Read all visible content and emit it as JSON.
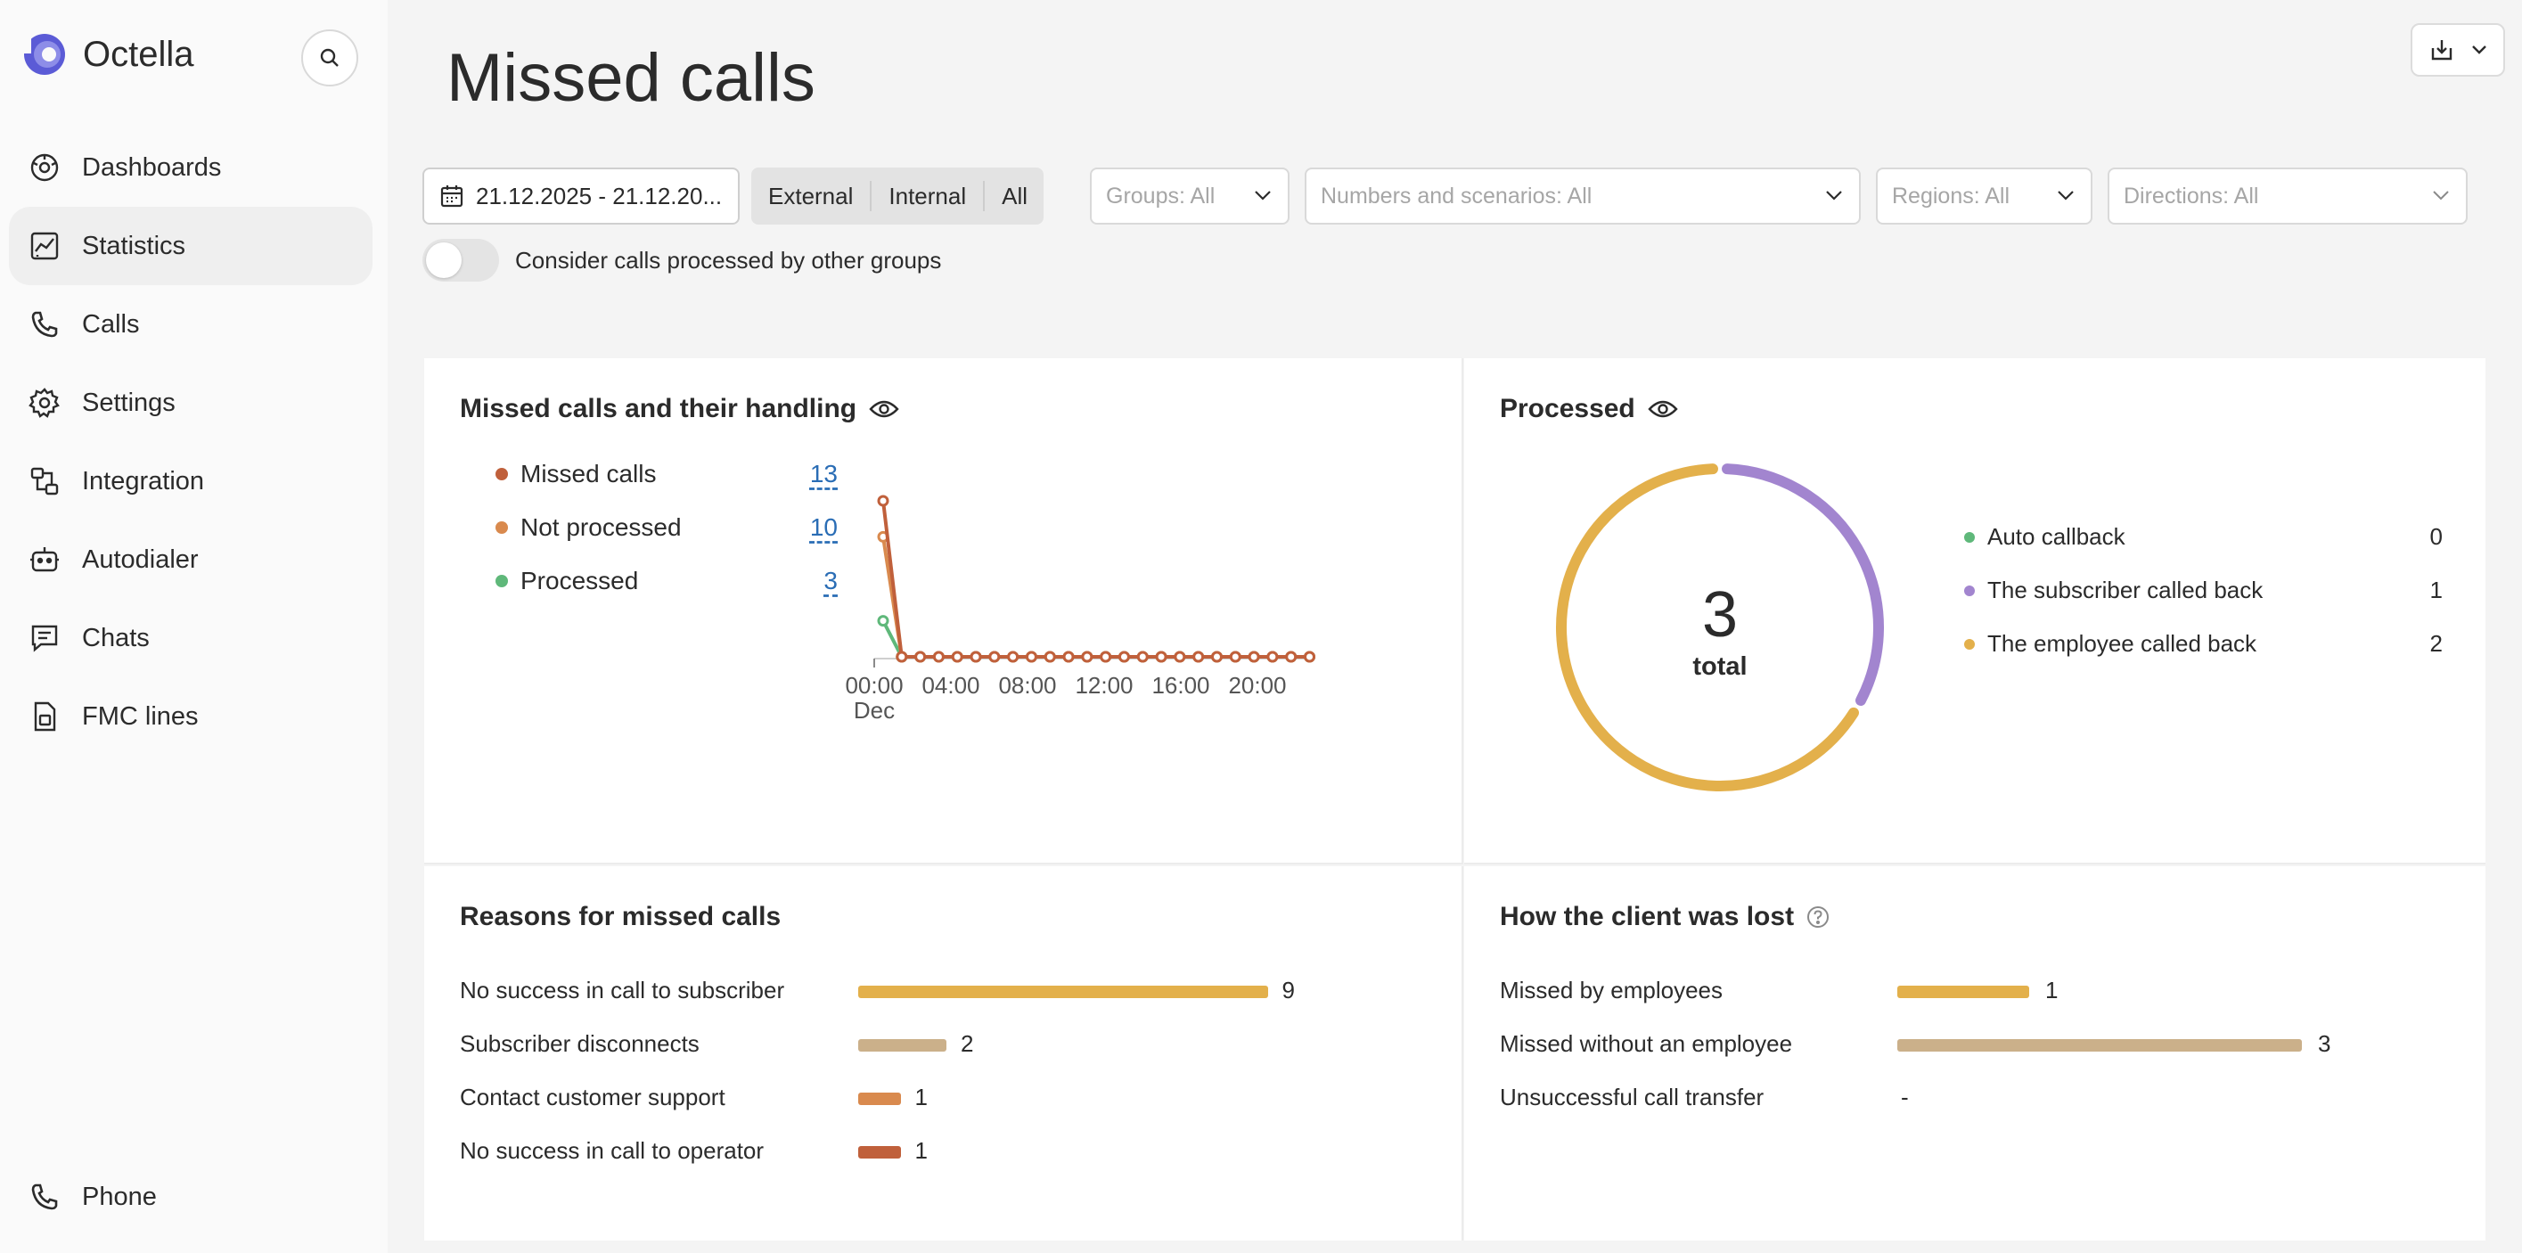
{
  "app": {
    "name": "Octella"
  },
  "sidebar": {
    "items": [
      {
        "label": "Dashboards",
        "icon": "dashboard-icon"
      },
      {
        "label": "Statistics",
        "icon": "chart-icon",
        "active": true
      },
      {
        "label": "Calls",
        "icon": "phone-icon"
      },
      {
        "label": "Settings",
        "icon": "gear-icon"
      },
      {
        "label": "Integration",
        "icon": "integration-icon"
      },
      {
        "label": "Autodialer",
        "icon": "robot-icon"
      },
      {
        "label": "Chats",
        "icon": "chat-icon"
      },
      {
        "label": "FMC lines",
        "icon": "sim-icon"
      }
    ],
    "bottom": {
      "label": "Phone",
      "icon": "phone-icon"
    }
  },
  "page": {
    "title": "Missed calls"
  },
  "filters": {
    "date_range": "21.12.2025 - 21.12.20...",
    "segments": [
      "External",
      "Internal",
      "All"
    ],
    "groups": "Groups: All",
    "numbers": "Numbers and scenarios: All",
    "regions": "Regions: All",
    "directions": "Directions: All",
    "toggle_label": "Consider calls processed by other groups",
    "toggle_on": false
  },
  "missed_panel": {
    "title": "Missed calls and their handling",
    "legend": [
      {
        "label": "Missed calls",
        "value": "13",
        "color": "#c0603b"
      },
      {
        "label": "Not processed",
        "value": "10",
        "color": "#d98a4e"
      },
      {
        "label": "Processed",
        "value": "3",
        "color": "#5fb87a"
      }
    ]
  },
  "processed_panel": {
    "title": "Processed",
    "total": "3",
    "total_label": "total",
    "legend": [
      {
        "label": "Auto callback",
        "value": "0",
        "color": "#5fb87a"
      },
      {
        "label": "The subscriber called back",
        "value": "1",
        "color": "#a285cf"
      },
      {
        "label": "The employee called back",
        "value": "2",
        "color": "#e3b04b"
      }
    ]
  },
  "reasons_panel": {
    "title": "Reasons for missed calls",
    "rows": [
      {
        "label": "No success in call to subscriber",
        "value": "9",
        "color": "#e3b04b"
      },
      {
        "label": "Subscriber disconnects",
        "value": "2",
        "color": "#cbb08a"
      },
      {
        "label": "Contact customer support",
        "value": "1",
        "color": "#d98a4e"
      },
      {
        "label": "No success in call to operator",
        "value": "1",
        "color": "#c0603b"
      }
    ]
  },
  "lost_panel": {
    "title": "How the client was lost",
    "rows": [
      {
        "label": "Missed by employees",
        "value": "1",
        "color": "#e3b04b"
      },
      {
        "label": "Missed without an employee",
        "value": "3",
        "color": "#cbb08a"
      },
      {
        "label": "Unsuccessful call transfer",
        "value": "-",
        "color": ""
      }
    ]
  },
  "chart_data": [
    {
      "type": "line",
      "title": "Missed calls and their handling",
      "x_ticks": [
        "00:00",
        "04:00",
        "08:00",
        "12:00",
        "16:00",
        "20:00"
      ],
      "x_sublabel": "Dec",
      "series": [
        {
          "name": "Missed calls",
          "color": "#c0603b",
          "values": [
            13,
            0,
            0,
            0,
            0,
            0,
            0,
            0,
            0,
            0,
            0,
            0,
            0,
            0,
            0,
            0,
            0,
            0,
            0,
            0,
            0,
            0,
            0,
            0
          ]
        },
        {
          "name": "Not processed",
          "color": "#d98a4e",
          "values": [
            10,
            0,
            0,
            0,
            0,
            0,
            0,
            0,
            0,
            0,
            0,
            0,
            0,
            0,
            0,
            0,
            0,
            0,
            0,
            0,
            0,
            0,
            0,
            0
          ]
        },
        {
          "name": "Processed",
          "color": "#5fb87a",
          "values": [
            3,
            0,
            0,
            0,
            0,
            0,
            0,
            0,
            0,
            0,
            0,
            0,
            0,
            0,
            0,
            0,
            0,
            0,
            0,
            0,
            0,
            0,
            0,
            0
          ]
        }
      ],
      "ylim": [
        0,
        13
      ]
    },
    {
      "type": "pie",
      "title": "Processed",
      "categories": [
        "Auto callback",
        "The subscriber called back",
        "The employee called back"
      ],
      "values": [
        0,
        1,
        2
      ]
    },
    {
      "type": "bar",
      "title": "Reasons for missed calls",
      "categories": [
        "No success in call to subscriber",
        "Subscriber disconnects",
        "Contact customer support",
        "No success in call to operator"
      ],
      "values": [
        9,
        2,
        1,
        1
      ]
    },
    {
      "type": "bar",
      "title": "How the client was lost",
      "categories": [
        "Missed by employees",
        "Missed without an employee",
        "Unsuccessful call transfer"
      ],
      "values": [
        1,
        3,
        null
      ]
    }
  ]
}
